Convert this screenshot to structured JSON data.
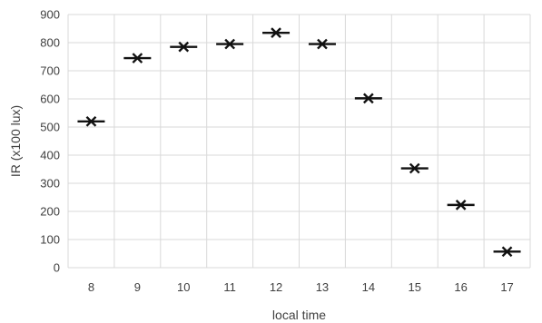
{
  "chart_data": {
    "type": "scatter",
    "title": "",
    "xlabel": "local time",
    "ylabel": "IR (x100 lux)",
    "categories": [
      "8",
      "9",
      "10",
      "11",
      "12",
      "13",
      "14",
      "15",
      "16",
      "17"
    ],
    "values": [
      520,
      745,
      785,
      795,
      835,
      795,
      602,
      353,
      223,
      57
    ],
    "ylim": [
      0,
      900
    ],
    "yticks": [
      0,
      100,
      200,
      300,
      400,
      500,
      600,
      700,
      800,
      900
    ],
    "grid": true,
    "marker": "x-with-horizontal-bar"
  }
}
